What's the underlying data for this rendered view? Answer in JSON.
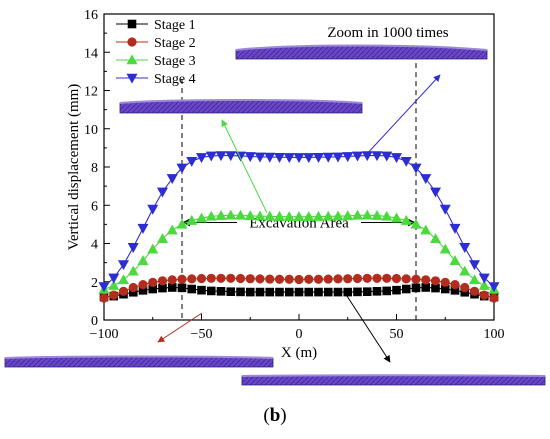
{
  "panel_label": "b",
  "annotations": {
    "zoom": "Zoom in 1000 times",
    "excavation": "Excavation Area"
  },
  "chart_data": {
    "type": "line",
    "xlabel": "X (m)",
    "ylabel": "Vertical displacement (mm)",
    "xlim": [
      -100,
      100
    ],
    "ylim": [
      0,
      16
    ],
    "xticks": [
      -100,
      -50,
      0,
      50,
      100
    ],
    "yticks": [
      0,
      2,
      4,
      6,
      8,
      10,
      12,
      14,
      16
    ],
    "grid": false,
    "legend_position": "top-left",
    "excavation_bounds": [
      -60,
      60
    ],
    "x": [
      -100,
      -95,
      -90,
      -85,
      -80,
      -75,
      -70,
      -65,
      -60,
      -55,
      -50,
      -45,
      -40,
      -35,
      -30,
      -25,
      -20,
      -15,
      -10,
      -5,
      0,
      5,
      10,
      15,
      20,
      25,
      30,
      35,
      40,
      45,
      50,
      55,
      60,
      65,
      70,
      75,
      80,
      85,
      90,
      95,
      100
    ],
    "series": [
      {
        "name": "Stage 1",
        "color": "#000000",
        "marker": "square",
        "values": [
          1.2,
          1.25,
          1.35,
          1.45,
          1.55,
          1.62,
          1.67,
          1.7,
          1.68,
          1.62,
          1.56,
          1.52,
          1.5,
          1.48,
          1.47,
          1.46,
          1.46,
          1.46,
          1.46,
          1.46,
          1.46,
          1.46,
          1.46,
          1.46,
          1.46,
          1.46,
          1.47,
          1.48,
          1.5,
          1.52,
          1.56,
          1.62,
          1.68,
          1.7,
          1.67,
          1.62,
          1.55,
          1.45,
          1.35,
          1.25,
          1.2
        ]
      },
      {
        "name": "Stage 2",
        "color": "#b22d1d",
        "marker": "circle",
        "values": [
          1.15,
          1.3,
          1.5,
          1.7,
          1.85,
          1.97,
          2.05,
          2.1,
          2.13,
          2.15,
          2.17,
          2.18,
          2.18,
          2.18,
          2.17,
          2.16,
          2.15,
          2.14,
          2.13,
          2.13,
          2.12,
          2.13,
          2.13,
          2.14,
          2.15,
          2.16,
          2.17,
          2.18,
          2.18,
          2.18,
          2.17,
          2.15,
          2.13,
          2.1,
          2.05,
          1.97,
          1.85,
          1.7,
          1.5,
          1.3,
          1.15
        ]
      },
      {
        "name": "Stage 3",
        "color": "#4cd93f",
        "marker": "triangle-up",
        "values": [
          1.6,
          1.8,
          2.1,
          2.55,
          3.1,
          3.7,
          4.25,
          4.7,
          5.0,
          5.2,
          5.33,
          5.42,
          5.46,
          5.48,
          5.47,
          5.45,
          5.43,
          5.42,
          5.41,
          5.4,
          5.4,
          5.4,
          5.41,
          5.42,
          5.43,
          5.45,
          5.47,
          5.48,
          5.46,
          5.42,
          5.33,
          5.2,
          5.0,
          4.7,
          4.25,
          3.7,
          3.1,
          2.55,
          2.1,
          1.8,
          1.6
        ]
      },
      {
        "name": "Stage 4",
        "color": "#2d2dd4",
        "marker": "triangle-down",
        "values": [
          1.75,
          2.2,
          2.9,
          3.8,
          4.8,
          5.8,
          6.7,
          7.4,
          7.95,
          8.3,
          8.5,
          8.58,
          8.6,
          8.6,
          8.58,
          8.55,
          8.53,
          8.52,
          8.51,
          8.5,
          8.5,
          8.5,
          8.51,
          8.52,
          8.53,
          8.55,
          8.58,
          8.6,
          8.6,
          8.58,
          8.5,
          8.3,
          7.95,
          7.4,
          6.7,
          5.8,
          4.8,
          3.8,
          2.9,
          2.2,
          1.75
        ]
      }
    ]
  }
}
